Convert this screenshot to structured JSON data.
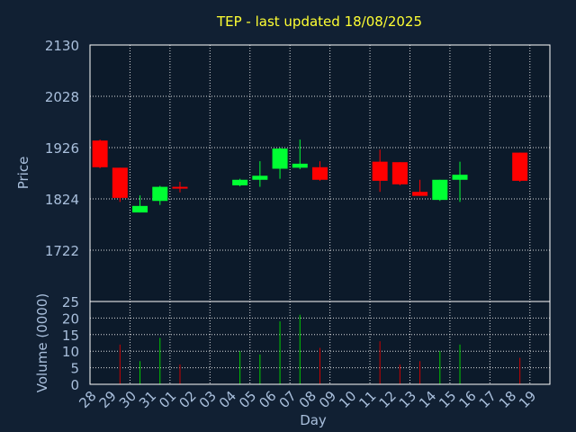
{
  "chart_data": {
    "type": "candlestick",
    "title": "TEP - last updated 18/08/2025",
    "xlabel": "Day",
    "colors": {
      "background": "#112033",
      "plot_background": "#0c1a2a",
      "frame": "#ffffff",
      "grid": "#ffffff",
      "axis_text": "#a9bfdc",
      "title": "#ffff33",
      "up": "#00ff33",
      "down": "#ff0000",
      "volume_up": "#00cc00",
      "volume_down": "#cc0000"
    },
    "x_ticks": [
      "28",
      "29",
      "30",
      "31",
      "01",
      "02",
      "03",
      "04",
      "05",
      "06",
      "07",
      "08",
      "09",
      "10",
      "11",
      "12",
      "13",
      "14",
      "15",
      "16",
      "17",
      "18",
      "19"
    ],
    "price_panel": {
      "ylabel": "Price",
      "ylim": [
        1620,
        2130
      ],
      "yticks": [
        1722,
        1824,
        1926,
        2028,
        2130
      ],
      "grid": true
    },
    "volume_panel": {
      "ylabel": "Volume (0000)",
      "ylim": [
        0,
        25
      ],
      "yticks": [
        0,
        5,
        10,
        15,
        20,
        25
      ],
      "grid": true
    },
    "candles": [
      {
        "day": "28",
        "open": 1940,
        "close": 1887,
        "high": 1942,
        "low": 1885,
        "volume": 0
      },
      {
        "day": "29",
        "open": 1886,
        "close": 1826,
        "high": 1886,
        "low": 1818,
        "volume": 12
      },
      {
        "day": "30",
        "open": 1797,
        "close": 1810,
        "high": 1831,
        "low": 1797,
        "volume": 7
      },
      {
        "day": "31",
        "open": 1820,
        "close": 1848,
        "high": 1850,
        "low": 1812,
        "volume": 14
      },
      {
        "day": "01",
        "open": 1848,
        "close": 1846,
        "high": 1858,
        "low": 1837,
        "volume": 6
      },
      {
        "day": "04",
        "open": 1851,
        "close": 1862,
        "high": 1864,
        "low": 1849,
        "volume": 10
      },
      {
        "day": "05",
        "open": 1862,
        "close": 1870,
        "high": 1899,
        "low": 1848,
        "volume": 9
      },
      {
        "day": "06",
        "open": 1884,
        "close": 1924,
        "high": 1926,
        "low": 1864,
        "volume": 19
      },
      {
        "day": "07",
        "open": 1886,
        "close": 1894,
        "high": 1942,
        "low": 1883,
        "volume": 21
      },
      {
        "day": "08",
        "open": 1887,
        "close": 1862,
        "high": 1899,
        "low": 1860,
        "volume": 11
      },
      {
        "day": "11",
        "open": 1898,
        "close": 1860,
        "high": 1922,
        "low": 1838,
        "volume": 13
      },
      {
        "day": "12",
        "open": 1897,
        "close": 1853,
        "high": 1897,
        "low": 1851,
        "volume": 6
      },
      {
        "day": "13",
        "open": 1838,
        "close": 1830,
        "high": 1862,
        "low": 1830,
        "volume": 7
      },
      {
        "day": "14",
        "open": 1822,
        "close": 1862,
        "high": 1862,
        "low": 1820,
        "volume": 10
      },
      {
        "day": "15",
        "open": 1862,
        "close": 1872,
        "high": 1898,
        "low": 1818,
        "volume": 12
      },
      {
        "day": "18",
        "open": 1916,
        "close": 1860,
        "high": 1916,
        "low": 1858,
        "volume": 8
      }
    ]
  }
}
